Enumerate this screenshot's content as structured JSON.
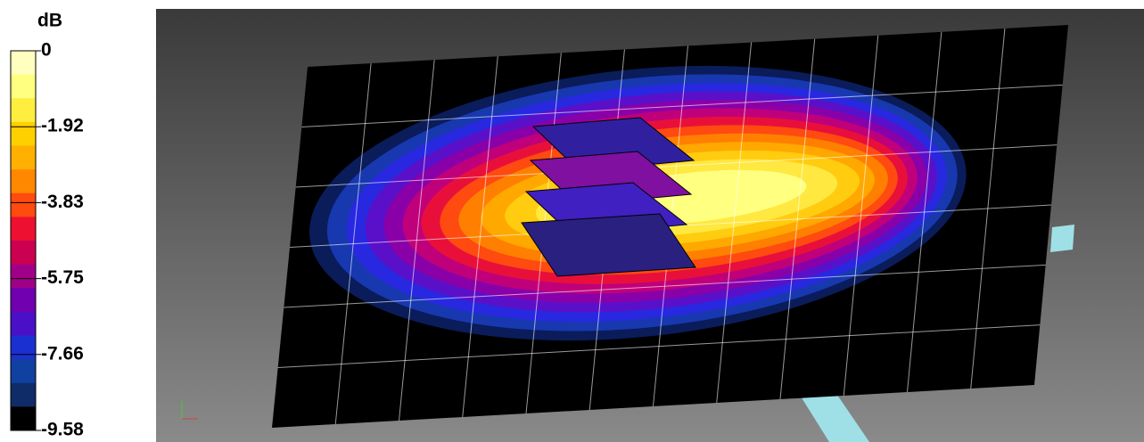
{
  "colorbar": {
    "title": "dB",
    "ticks": [
      "0",
      "-1.92",
      "-3.83",
      "-5.75",
      "-7.66",
      "-9.58"
    ]
  }
}
